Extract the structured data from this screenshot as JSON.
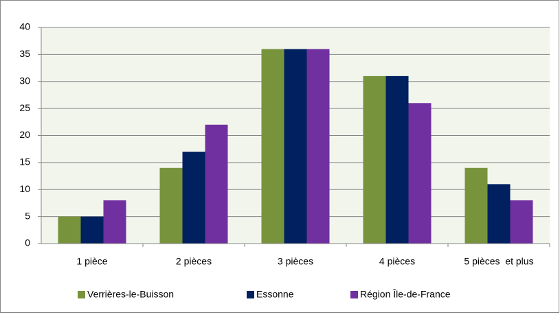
{
  "chart_data": {
    "type": "bar",
    "categories": [
      "1 pièce",
      "2 pièces",
      "3 pièces",
      "4 pièces",
      "5 pièces  et plus"
    ],
    "series": [
      {
        "name": "Verrières-le-Buisson",
        "color": "#77933c",
        "values": [
          5,
          14,
          36,
          31,
          14
        ]
      },
      {
        "name": "Essonne",
        "color": "#002060",
        "values": [
          5,
          17,
          36,
          31,
          11
        ]
      },
      {
        "name": "Région Île-de-France",
        "color": "#7030a0",
        "values": [
          8,
          22,
          36,
          26,
          8
        ]
      }
    ],
    "ylim": [
      0,
      40
    ],
    "yticks": [
      0,
      5,
      10,
      15,
      20,
      25,
      30,
      35,
      40
    ],
    "grid": true,
    "legend": "bottom"
  }
}
